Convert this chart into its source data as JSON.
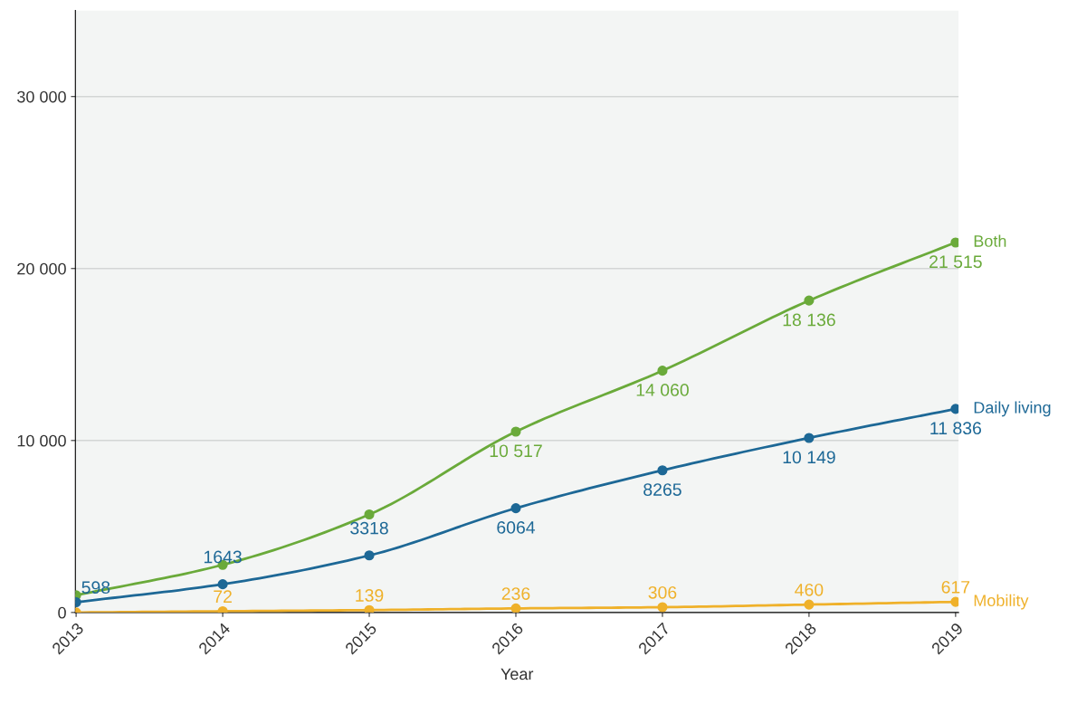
{
  "chart_data": {
    "type": "line",
    "xlabel": "Year",
    "categories": [
      "2013",
      "2014",
      "2015",
      "2016",
      "2017",
      "2018",
      "2019"
    ],
    "series": [
      {
        "name": "Both",
        "color": "#6aaa3a",
        "values": [
          1000,
          2770,
          5700,
          10517,
          14060,
          18136,
          21515
        ],
        "value_labels": [
          null,
          null,
          null,
          "10 517",
          "14 060",
          "18 136",
          "21 515"
        ]
      },
      {
        "name": "Daily living",
        "color": "#1d6896",
        "values": [
          598,
          1643,
          3318,
          6064,
          8265,
          10149,
          11836
        ],
        "value_labels": [
          "598",
          "1643",
          "3318",
          "6064",
          "8265",
          "10 149",
          "11 836"
        ]
      },
      {
        "name": "Mobility",
        "color": "#efb12a",
        "values": [
          0,
          72,
          139,
          236,
          306,
          460,
          617
        ],
        "value_labels": [
          null,
          "72",
          "139",
          "236",
          "306",
          "460",
          "617"
        ]
      }
    ],
    "ylim": [
      0,
      35000
    ],
    "yticks": [
      {
        "value": 0,
        "label": "0"
      },
      {
        "value": 10000,
        "label": "10 000"
      },
      {
        "value": 20000,
        "label": "20 000"
      },
      {
        "value": 30000,
        "label": "30 000"
      }
    ],
    "grid": "y",
    "legend": false,
    "marker": "circle",
    "line_style": "solid"
  }
}
